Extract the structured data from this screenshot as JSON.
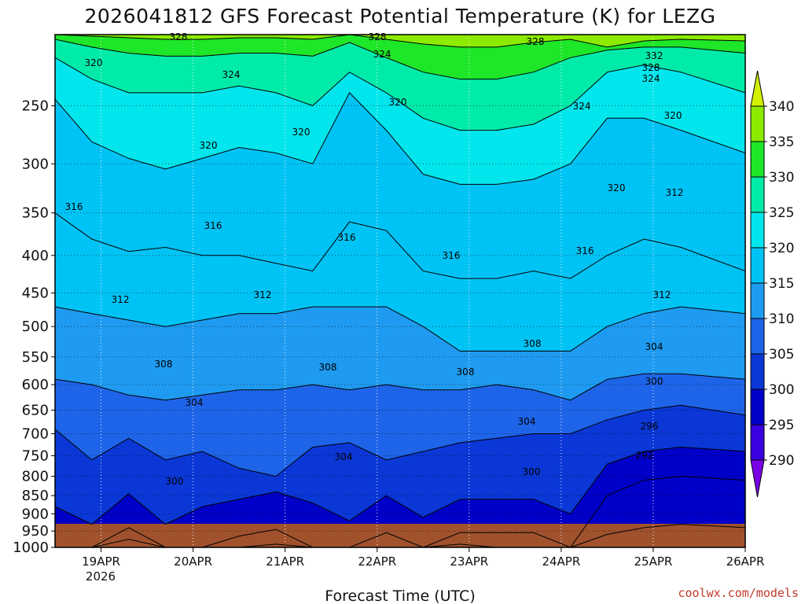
{
  "chart_data": {
    "type": "heatmap",
    "title": "2026041812 GFS Forecast Potential Temperature (K) for LEZG",
    "xlabel": "Forecast Time (UTC)",
    "ylabel": "",
    "credit": "coolwx.com/models",
    "x_ticks": [
      "19APR",
      "20APR",
      "21APR",
      "22APR",
      "23APR",
      "24APR",
      "25APR",
      "26APR"
    ],
    "x_tick_sublabel": "2026",
    "x_range_days": [
      18.5,
      26.0
    ],
    "y_ticks": [
      250,
      300,
      350,
      400,
      450,
      500,
      550,
      600,
      650,
      700,
      750,
      800,
      850,
      900,
      950,
      1000
    ],
    "y_range_hpa": [
      200,
      1000
    ],
    "y_scale": "log-pressure",
    "grid": true,
    "colorbar": {
      "ticks": [
        340,
        335,
        330,
        325,
        320,
        315,
        310,
        305,
        300,
        295,
        290
      ],
      "bands": [
        {
          "min": 285,
          "max": 290,
          "color": "#7a00e6"
        },
        {
          "min": 290,
          "max": 295,
          "color": "#3a00e0"
        },
        {
          "min": 295,
          "max": 300,
          "color": "#0000c8"
        },
        {
          "min": 300,
          "max": 305,
          "color": "#0a37d6"
        },
        {
          "min": 305,
          "max": 310,
          "color": "#1e64e8"
        },
        {
          "min": 310,
          "max": 315,
          "color": "#1e9bf0"
        },
        {
          "min": 315,
          "max": 320,
          "color": "#00c3f5"
        },
        {
          "min": 320,
          "max": 325,
          "color": "#00e6ec"
        },
        {
          "min": 325,
          "max": 330,
          "color": "#00ebaa"
        },
        {
          "min": 330,
          "max": 335,
          "color": "#1ee628"
        },
        {
          "min": 335,
          "max": 340,
          "color": "#8ceb00"
        },
        {
          "min": 340,
          "max": 345,
          "color": "#d2f000"
        }
      ]
    },
    "contour_labels": [
      "328",
      "328",
      "328",
      "332",
      "328",
      "320",
      "324",
      "324",
      "324",
      "320",
      "324",
      "320",
      "320",
      "320",
      "320",
      "316",
      "316",
      "316",
      "316",
      "316",
      "312",
      "312",
      "312",
      "312",
      "308",
      "308",
      "308",
      "308",
      "304",
      "304",
      "304",
      "304",
      "300",
      "300",
      "300",
      "296",
      "292"
    ],
    "profile_layers": [
      {
        "theta": 292,
        "p": [
          1000,
          1000,
          975,
          1000,
          1000,
          1000,
          990,
          1000,
          1000,
          1000,
          1000,
          990,
          1000,
          1000,
          1000,
          960,
          940,
          930,
          940
        ]
      },
      {
        "theta": 296,
        "p": [
          1000,
          1000,
          940,
          1000,
          1000,
          965,
          945,
          1000,
          1000,
          955,
          1000,
          955,
          955,
          955,
          1000,
          850,
          810,
          800,
          810
        ]
      },
      {
        "theta": 300,
        "p": [
          880,
          930,
          845,
          930,
          880,
          860,
          840,
          870,
          920,
          850,
          910,
          860,
          860,
          860,
          900,
          770,
          740,
          730,
          740
        ]
      },
      {
        "theta": 304,
        "p": [
          690,
          760,
          710,
          760,
          740,
          780,
          800,
          730,
          720,
          760,
          740,
          720,
          710,
          700,
          700,
          670,
          650,
          640,
          660
        ]
      },
      {
        "theta": 308,
        "p": [
          590,
          600,
          620,
          630,
          620,
          610,
          610,
          600,
          610,
          600,
          610,
          610,
          600,
          610,
          630,
          590,
          580,
          580,
          590
        ]
      },
      {
        "theta": 312,
        "p": [
          470,
          480,
          490,
          500,
          490,
          480,
          480,
          470,
          470,
          470,
          500,
          540,
          540,
          540,
          540,
          500,
          480,
          470,
          480
        ]
      },
      {
        "theta": 316,
        "p": [
          350,
          380,
          395,
          390,
          400,
          400,
          410,
          420,
          360,
          370,
          420,
          430,
          430,
          420,
          430,
          400,
          380,
          390,
          420
        ]
      },
      {
        "theta": 320,
        "p": [
          245,
          280,
          295,
          305,
          295,
          285,
          290,
          300,
          240,
          270,
          310,
          320,
          320,
          315,
          300,
          260,
          260,
          270,
          290
        ]
      },
      {
        "theta": 324,
        "p": [
          215,
          230,
          240,
          240,
          240,
          235,
          240,
          250,
          225,
          240,
          260,
          270,
          270,
          265,
          250,
          225,
          220,
          225,
          240
        ]
      },
      {
        "theta": 328,
        "p": [
          203,
          208,
          212,
          214,
          214,
          212,
          212,
          214,
          205,
          215,
          225,
          230,
          230,
          225,
          215,
          210,
          208,
          208,
          212
        ]
      },
      {
        "theta": 332,
        "p": [
          200,
          201,
          202,
          203,
          203,
          202,
          202,
          203,
          200,
          203,
          206,
          208,
          208,
          205,
          203,
          208,
          204,
          203,
          204
        ]
      }
    ],
    "profile_days": [
      18.5,
      18.9,
      19.3,
      19.7,
      20.1,
      20.5,
      20.9,
      21.3,
      21.7,
      22.1,
      22.5,
      22.9,
      23.3,
      23.7,
      24.1,
      24.5,
      24.9,
      25.3,
      26.0
    ]
  }
}
